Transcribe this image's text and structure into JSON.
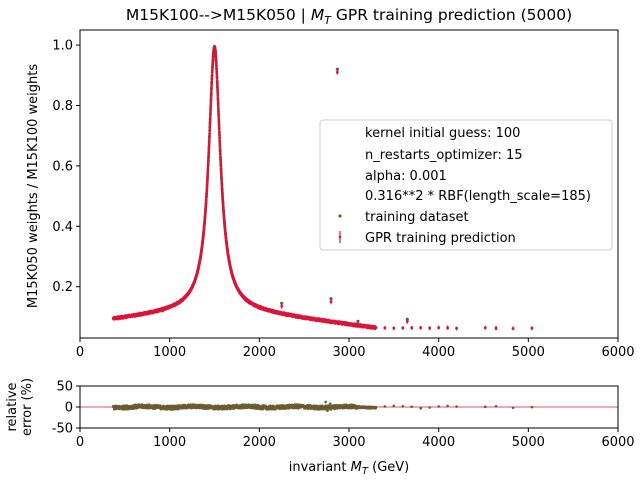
{
  "chart_data": [
    {
      "type": "scatter",
      "title_prefix": "M15K100-->M15K050 | ",
      "title_var": "M",
      "title_var_sub": "T",
      "title_suffix": " GPR training prediction (5000)",
      "xlabel": "",
      "ylabel": "M15K050 weights / M15K100 weights",
      "xlim": [
        0,
        6000
      ],
      "ylim": [
        0.03,
        1.05
      ],
      "xticks": [
        0,
        1000,
        2000,
        3000,
        4000,
        5000,
        6000
      ],
      "yticks": [
        0.2,
        0.4,
        0.6,
        0.8,
        1.0
      ],
      "ytick_labels": [
        "0.2",
        "0.4",
        "0.6",
        "0.8",
        "1.0"
      ],
      "grid": false,
      "legend_position": "center-right",
      "legend": {
        "text_entries": [
          "kernel initial guess: 100",
          "n_restarts_optimizer: 15",
          "alpha: 0.001",
          "0.316**2 * RBF(length_scale=185)"
        ],
        "series_entries": [
          "training dataset",
          "GPR training prediction"
        ]
      },
      "series": [
        {
          "name": "training dataset",
          "color": "#556b2f",
          "marker": "dot",
          "peak_curve": {
            "x0": 1500,
            "peak": 0.995,
            "gamma": 78,
            "base": 0.09,
            "tail_base": 0.062,
            "x_range": [
              370,
              5050
            ]
          },
          "outliers": [
            {
              "x": 920,
              "y": 0.12
            },
            {
              "x": 2250,
              "y": 0.145
            },
            {
              "x": 2800,
              "y": 0.16
            },
            {
              "x": 2870,
              "y": 0.92
            },
            {
              "x": 3650,
              "y": 0.092
            },
            {
              "x": 3100,
              "y": 0.085
            }
          ]
        },
        {
          "name": "GPR training prediction",
          "color": "#dc143c",
          "marker": "errorbar",
          "peak_curve": {
            "x0": 1500,
            "peak": 0.99,
            "gamma": 78,
            "base": 0.09,
            "tail_base": 0.062,
            "x_range": [
              370,
              5050
            ]
          },
          "outliers": [
            {
              "x": 920,
              "y": 0.125
            },
            {
              "x": 2250,
              "y": 0.135
            },
            {
              "x": 2800,
              "y": 0.15
            },
            {
              "x": 2870,
              "y": 0.91
            },
            {
              "x": 3650,
              "y": 0.085
            }
          ]
        }
      ],
      "tail_points_x": [
        3300,
        3400,
        3500,
        3600,
        3700,
        3800,
        3900,
        4000,
        4100,
        4200,
        4520,
        4640,
        4830,
        5040
      ]
    },
    {
      "type": "scatter",
      "xlabel_prefix": "invariant ",
      "xlabel_var": "M",
      "xlabel_var_sub": "T",
      "xlabel_suffix": " (GeV)",
      "ylabel_line1": "relative",
      "ylabel_line2": "error (%)",
      "xlim": [
        0,
        6000
      ],
      "ylim": [
        -50,
        50
      ],
      "xticks": [
        0,
        1000,
        2000,
        3000,
        4000,
        5000,
        6000
      ],
      "yticks": [
        -50,
        0,
        50
      ],
      "reference_line": {
        "y": 0,
        "color": "#dc143c"
      },
      "series": [
        {
          "name": "relative error",
          "color": "#556b2f",
          "x_range": [
            370,
            5050
          ],
          "spread": 4.5
        }
      ],
      "tail_points_x": [
        3300,
        3400,
        3500,
        3600,
        3700,
        3800,
        3900,
        4000,
        4100,
        4200,
        4520,
        4640,
        4830,
        5040
      ]
    }
  ]
}
